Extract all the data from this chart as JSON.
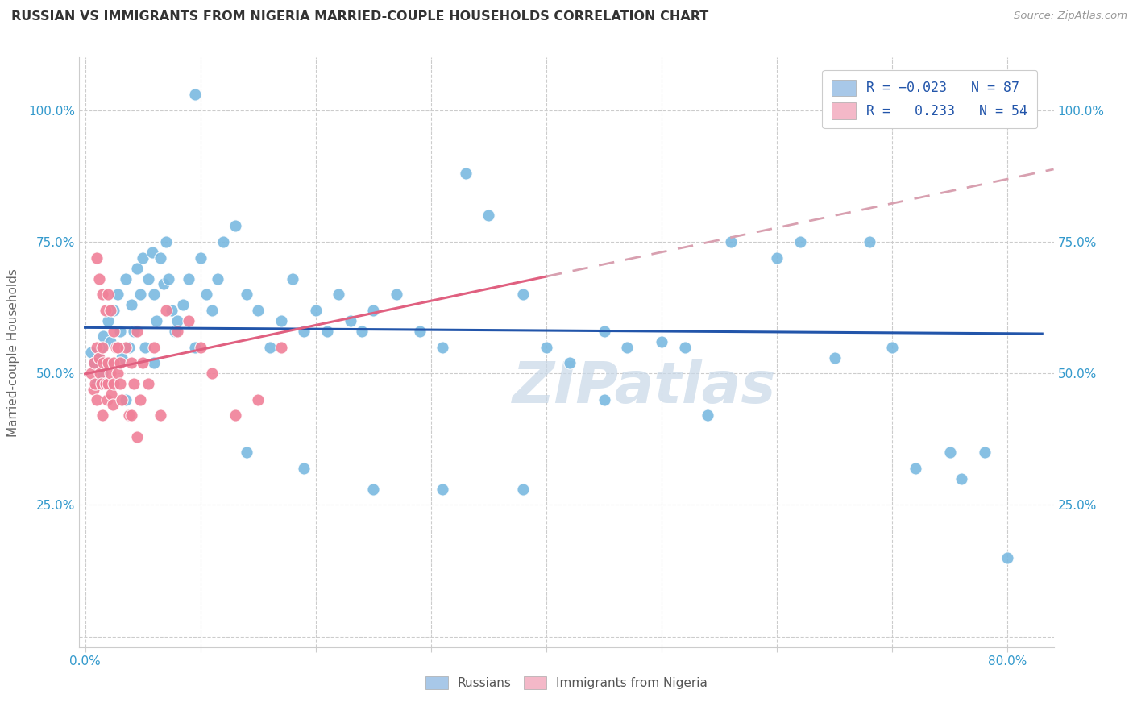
{
  "title": "RUSSIAN VS IMMIGRANTS FROM NIGERIA MARRIED-COUPLE HOUSEHOLDS CORRELATION CHART",
  "source": "Source: ZipAtlas.com",
  "ylabel": "Married-couple Households",
  "x_min": 0.0,
  "x_max": 0.8,
  "y_min": 0.0,
  "y_max": 1.05,
  "x_ticks": [
    0.0,
    0.1,
    0.2,
    0.3,
    0.4,
    0.5,
    0.6,
    0.7,
    0.8
  ],
  "x_tick_labels_show": [
    "0.0%",
    "80.0%"
  ],
  "y_ticks": [
    0.0,
    0.25,
    0.5,
    0.75,
    1.0
  ],
  "y_tick_labels": [
    "25.0%",
    "50.0%",
    "75.0%",
    "100.0%"
  ],
  "russians_R": -0.023,
  "nigeria_R": 0.233,
  "blue_scatter_color": "#7ab9e0",
  "pink_scatter_color": "#f08098",
  "blue_edge_color": "#5a9fc8",
  "pink_edge_color": "#e06878",
  "trend_blue_color": "#2255aa",
  "trend_pink_solid_color": "#e06080",
  "trend_pink_dashed_color": "#d8a0b0",
  "legend_blue_face": "#a8c8e8",
  "legend_pink_face": "#f4b8c8",
  "tick_label_color": "#3399cc",
  "ylabel_color": "#666666",
  "title_color": "#333333",
  "source_color": "#999999",
  "grid_color": "#cccccc",
  "watermark_color": "#c8d8e8",
  "russians_x": [
    0.005,
    0.008,
    0.01,
    0.012,
    0.014,
    0.015,
    0.016,
    0.018,
    0.02,
    0.022,
    0.025,
    0.028,
    0.03,
    0.032,
    0.035,
    0.038,
    0.04,
    0.042,
    0.045,
    0.048,
    0.05,
    0.052,
    0.055,
    0.058,
    0.06,
    0.062,
    0.065,
    0.068,
    0.07,
    0.072,
    0.075,
    0.078,
    0.08,
    0.085,
    0.09,
    0.095,
    0.1,
    0.105,
    0.11,
    0.115,
    0.12,
    0.13,
    0.14,
    0.15,
    0.16,
    0.17,
    0.18,
    0.19,
    0.2,
    0.21,
    0.22,
    0.23,
    0.24,
    0.25,
    0.27,
    0.29,
    0.31,
    0.33,
    0.35,
    0.38,
    0.4,
    0.42,
    0.45,
    0.47,
    0.5,
    0.52,
    0.54,
    0.56,
    0.6,
    0.62,
    0.65,
    0.68,
    0.7,
    0.72,
    0.75,
    0.76,
    0.78,
    0.8,
    0.45,
    0.38,
    0.31,
    0.25,
    0.19,
    0.14,
    0.095,
    0.06,
    0.035
  ],
  "russians_y": [
    0.54,
    0.52,
    0.48,
    0.53,
    0.55,
    0.5,
    0.57,
    0.52,
    0.6,
    0.56,
    0.62,
    0.65,
    0.58,
    0.53,
    0.68,
    0.55,
    0.63,
    0.58,
    0.7,
    0.65,
    0.72,
    0.55,
    0.68,
    0.73,
    0.65,
    0.6,
    0.72,
    0.67,
    0.75,
    0.68,
    0.62,
    0.58,
    0.6,
    0.63,
    0.68,
    0.55,
    0.72,
    0.65,
    0.62,
    0.68,
    0.75,
    0.78,
    0.65,
    0.62,
    0.55,
    0.6,
    0.68,
    0.58,
    0.62,
    0.58,
    0.65,
    0.6,
    0.58,
    0.62,
    0.65,
    0.58,
    0.55,
    0.88,
    0.8,
    0.65,
    0.55,
    0.52,
    0.58,
    0.55,
    0.56,
    0.55,
    0.42,
    0.75,
    0.72,
    0.75,
    0.53,
    0.75,
    0.55,
    0.32,
    0.35,
    0.3,
    0.35,
    0.15,
    0.45,
    0.28,
    0.28,
    0.28,
    0.32,
    0.35,
    1.03,
    0.52,
    0.45
  ],
  "nigeria_x": [
    0.005,
    0.007,
    0.008,
    0.009,
    0.01,
    0.01,
    0.012,
    0.013,
    0.014,
    0.015,
    0.015,
    0.016,
    0.018,
    0.019,
    0.02,
    0.02,
    0.022,
    0.023,
    0.024,
    0.025,
    0.025,
    0.027,
    0.028,
    0.03,
    0.03,
    0.032,
    0.035,
    0.038,
    0.04,
    0.042,
    0.045,
    0.048,
    0.05,
    0.055,
    0.06,
    0.065,
    0.07,
    0.08,
    0.09,
    0.1,
    0.11,
    0.13,
    0.15,
    0.17,
    0.01,
    0.012,
    0.015,
    0.018,
    0.02,
    0.022,
    0.025,
    0.028,
    0.04,
    0.045
  ],
  "nigeria_y": [
    0.5,
    0.47,
    0.52,
    0.48,
    0.55,
    0.45,
    0.53,
    0.5,
    0.48,
    0.55,
    0.42,
    0.52,
    0.48,
    0.45,
    0.52,
    0.48,
    0.5,
    0.46,
    0.44,
    0.52,
    0.48,
    0.55,
    0.5,
    0.52,
    0.48,
    0.45,
    0.55,
    0.42,
    0.52,
    0.48,
    0.58,
    0.45,
    0.52,
    0.48,
    0.55,
    0.42,
    0.62,
    0.58,
    0.6,
    0.55,
    0.5,
    0.42,
    0.45,
    0.55,
    0.72,
    0.68,
    0.65,
    0.62,
    0.65,
    0.62,
    0.58,
    0.55,
    0.42,
    0.38
  ]
}
